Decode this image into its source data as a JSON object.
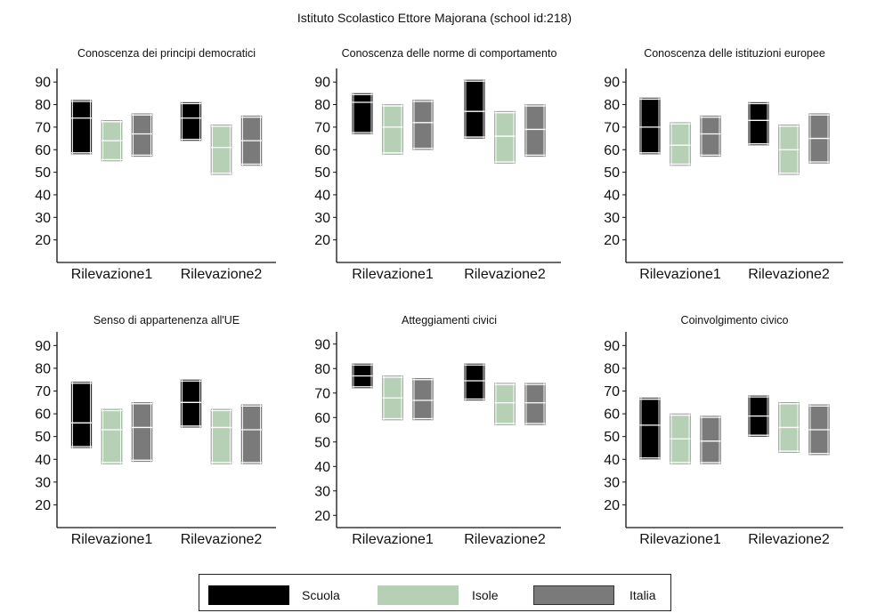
{
  "title": "Istituto Scolastico Ettore Majorana (school id:218)",
  "colors": {
    "Scuola": "#000000",
    "Isole": "#b6d0b6",
    "Italia": "#7a7a7a"
  },
  "legend": [
    {
      "name": "Scuola",
      "color": "#000000"
    },
    {
      "name": "Isole",
      "color": "#b6d0b6"
    },
    {
      "name": "Italia",
      "color": "#7a7a7a"
    }
  ],
  "chart_data": [
    {
      "type": "boxplot",
      "title": "Conoscenza dei principi democratici",
      "categories": [
        "Rilevazione1",
        "Rilevazione2"
      ],
      "yticks": [
        20,
        30,
        40,
        50,
        60,
        70,
        80,
        90
      ],
      "ylim": [
        10,
        96
      ],
      "series": [
        {
          "name": "Scuola",
          "boxes": [
            {
              "low": 58,
              "mid": 74,
              "high": 82
            },
            {
              "low": 64,
              "mid": 74,
              "high": 81
            }
          ]
        },
        {
          "name": "Isole",
          "boxes": [
            {
              "low": 55,
              "mid": 64,
              "high": 73
            },
            {
              "low": 49,
              "mid": 61,
              "high": 71
            }
          ]
        },
        {
          "name": "Italia",
          "boxes": [
            {
              "low": 57,
              "mid": 67,
              "high": 76
            },
            {
              "low": 53,
              "mid": 64,
              "high": 75
            }
          ]
        }
      ]
    },
    {
      "type": "boxplot",
      "title": "Conoscenza delle norme di comportamento",
      "categories": [
        "Rilevazione1",
        "Rilevazione2"
      ],
      "yticks": [
        20,
        30,
        40,
        50,
        60,
        70,
        80,
        90
      ],
      "ylim": [
        10,
        96
      ],
      "series": [
        {
          "name": "Scuola",
          "boxes": [
            {
              "low": 67,
              "mid": 81,
              "high": 85
            },
            {
              "low": 65,
              "mid": 77,
              "high": 91
            }
          ]
        },
        {
          "name": "Isole",
          "boxes": [
            {
              "low": 58,
              "mid": 70,
              "high": 80
            },
            {
              "low": 54,
              "mid": 66,
              "high": 77
            }
          ]
        },
        {
          "name": "Italia",
          "boxes": [
            {
              "low": 60,
              "mid": 72,
              "high": 82
            },
            {
              "low": 57,
              "mid": 69,
              "high": 80
            }
          ]
        }
      ]
    },
    {
      "type": "boxplot",
      "title": "Conoscenza delle istituzioni europee",
      "categories": [
        "Rilevazione1",
        "Rilevazione2"
      ],
      "yticks": [
        20,
        30,
        40,
        50,
        60,
        70,
        80,
        90
      ],
      "ylim": [
        10,
        96
      ],
      "series": [
        {
          "name": "Scuola",
          "boxes": [
            {
              "low": 58,
              "mid": 70,
              "high": 83
            },
            {
              "low": 62,
              "mid": 73,
              "high": 81
            }
          ]
        },
        {
          "name": "Isole",
          "boxes": [
            {
              "low": 53,
              "mid": 62,
              "high": 72
            },
            {
              "low": 49,
              "mid": 60,
              "high": 71
            }
          ]
        },
        {
          "name": "Italia",
          "boxes": [
            {
              "low": 57,
              "mid": 67,
              "high": 75
            },
            {
              "low": 54,
              "mid": 65,
              "high": 76
            }
          ]
        }
      ]
    },
    {
      "type": "boxplot",
      "title": "Senso di appartenenza all'UE",
      "categories": [
        "Rilevazione1",
        "Rilevazione2"
      ],
      "yticks": [
        20,
        30,
        40,
        50,
        60,
        70,
        80,
        90
      ],
      "ylim": [
        10,
        96
      ],
      "series": [
        {
          "name": "Scuola",
          "boxes": [
            {
              "low": 45,
              "mid": 56,
              "high": 74
            },
            {
              "low": 54,
              "mid": 65,
              "high": 75
            }
          ]
        },
        {
          "name": "Isole",
          "boxes": [
            {
              "low": 38,
              "mid": 53,
              "high": 62
            },
            {
              "low": 38,
              "mid": 54,
              "high": 62
            }
          ]
        },
        {
          "name": "Italia",
          "boxes": [
            {
              "low": 39,
              "mid": 54,
              "high": 65
            },
            {
              "low": 38,
              "mid": 53,
              "high": 64
            }
          ]
        }
      ]
    },
    {
      "type": "boxplot",
      "title": "Atteggiamenti civici",
      "categories": [
        "Rilevazione1",
        "Rilevazione2"
      ],
      "yticks": [
        20,
        30,
        40,
        50,
        60,
        70,
        80,
        90
      ],
      "ylim": [
        15,
        95
      ],
      "series": [
        {
          "name": "Scuola",
          "boxes": [
            {
              "low": 72,
              "mid": 77,
              "high": 82
            },
            {
              "low": 67,
              "mid": 75,
              "high": 82
            }
          ]
        },
        {
          "name": "Isole",
          "boxes": [
            {
              "low": 59,
              "mid": 68,
              "high": 77
            },
            {
              "low": 57,
              "mid": 66,
              "high": 74
            }
          ]
        },
        {
          "name": "Italia",
          "boxes": [
            {
              "low": 59,
              "mid": 67,
              "high": 76
            },
            {
              "low": 57,
              "mid": 66,
              "high": 74
            }
          ]
        }
      ]
    },
    {
      "type": "boxplot",
      "title": "Coinvolgimento civico",
      "categories": [
        "Rilevazione1",
        "Rilevazione2"
      ],
      "yticks": [
        20,
        30,
        40,
        50,
        60,
        70,
        80,
        90
      ],
      "ylim": [
        10,
        96
      ],
      "series": [
        {
          "name": "Scuola",
          "boxes": [
            {
              "low": 40,
              "mid": 55,
              "high": 67
            },
            {
              "low": 50,
              "mid": 59,
              "high": 68
            }
          ]
        },
        {
          "name": "Isole",
          "boxes": [
            {
              "low": 38,
              "mid": 49,
              "high": 60
            },
            {
              "low": 43,
              "mid": 54,
              "high": 65
            }
          ]
        },
        {
          "name": "Italia",
          "boxes": [
            {
              "low": 38,
              "mid": 48,
              "high": 59
            },
            {
              "low": 42,
              "mid": 53,
              "high": 64
            }
          ]
        }
      ]
    }
  ]
}
